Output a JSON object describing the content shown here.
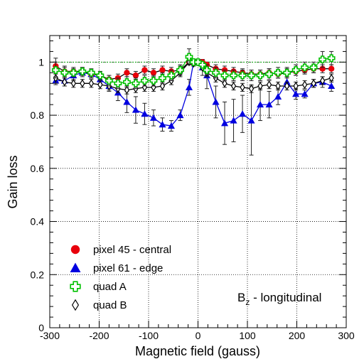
{
  "chart_data": {
    "type": "scatter",
    "title": "",
    "xlabel": "Magnetic field (gauss)",
    "ylabel": "Gain loss",
    "xlim": [
      -300,
      300
    ],
    "ylim": [
      0,
      1.1
    ],
    "grid": true,
    "legend_position": "bottom-left",
    "annotation": {
      "main": "B",
      "sub": "z",
      "rest": " - longitudinal"
    },
    "reference_line": 1.0,
    "x_ticks": [
      -300,
      -200,
      -100,
      0,
      100,
      200,
      300
    ],
    "x_tick_labels": [
      "-300",
      "-200",
      "-100",
      "0",
      "100",
      "200",
      "300"
    ],
    "y_ticks": [
      0,
      0.2,
      0.4,
      0.6,
      0.8,
      1.0
    ],
    "y_tick_labels": [
      "0",
      "0.2",
      "0.4",
      "0.6",
      "0.8",
      "1"
    ],
    "series": [
      {
        "name": "pixel 45 - central",
        "marker": "circle",
        "color": "#e8000b",
        "line_color": "#000000",
        "x": [
          -288,
          -270,
          -252,
          -234,
          -216,
          -198,
          -180,
          -162,
          -144,
          -126,
          -108,
          -90,
          -72,
          -54,
          -36,
          -18,
          -9,
          0,
          9,
          18,
          36,
          54,
          72,
          90,
          108,
          126,
          144,
          162,
          180,
          198,
          216,
          234,
          252,
          270
        ],
        "y": [
          0.985,
          0.965,
          0.965,
          0.965,
          0.955,
          0.95,
          0.935,
          0.94,
          0.96,
          0.95,
          0.97,
          0.96,
          0.97,
          0.965,
          0.97,
          1.0,
          1.0,
          1.0,
          1.0,
          0.99,
          0.975,
          0.97,
          0.965,
          0.96,
          0.955,
          0.955,
          0.96,
          0.955,
          0.96,
          0.965,
          0.97,
          0.975,
          0.975,
          0.975
        ],
        "err": [
          0.03,
          0.02,
          0.015,
          0.015,
          0.015,
          0.015,
          0.015,
          0.015,
          0.015,
          0.015,
          0.015,
          0.015,
          0.015,
          0.015,
          0.015,
          0.01,
          0.01,
          0.01,
          0.01,
          0.01,
          0.015,
          0.015,
          0.015,
          0.015,
          0.015,
          0.015,
          0.015,
          0.015,
          0.015,
          0.015,
          0.015,
          0.015,
          0.015,
          0.015
        ]
      },
      {
        "name": "pixel 61 - edge",
        "marker": "triangle",
        "color": "#0000e0",
        "line_color": "#0000e0",
        "x": [
          -288,
          -270,
          -252,
          -234,
          -216,
          -198,
          -180,
          -162,
          -144,
          -126,
          -108,
          -90,
          -72,
          -54,
          -36,
          -18,
          -9,
          0,
          9,
          18,
          36,
          54,
          72,
          90,
          108,
          126,
          144,
          162,
          180,
          198,
          216,
          234,
          252,
          270
        ],
        "y": [
          0.93,
          0.93,
          0.95,
          0.96,
          0.955,
          0.935,
          0.91,
          0.885,
          0.85,
          0.82,
          0.805,
          0.79,
          0.765,
          0.76,
          0.8,
          0.905,
          1.0,
          1.0,
          0.98,
          0.95,
          0.85,
          0.77,
          0.78,
          0.805,
          0.78,
          0.84,
          0.84,
          0.87,
          0.925,
          0.88,
          0.88,
          0.92,
          0.925,
          0.91
        ],
        "err": [
          0.015,
          0.02,
          0.02,
          0.015,
          0.015,
          0.015,
          0.02,
          0.03,
          0.04,
          0.05,
          0.04,
          0.03,
          0.025,
          0.02,
          0.02,
          0.03,
          0.01,
          0.01,
          0.03,
          0.05,
          0.06,
          0.08,
          0.08,
          0.07,
          0.13,
          0.06,
          0.05,
          0.03,
          0.02,
          0.02,
          0.015,
          0.015,
          0.02,
          0.02
        ]
      },
      {
        "name": "quad A",
        "marker": "cross",
        "color": "#00c000",
        "line_color": "#00c000",
        "x": [
          -288,
          -270,
          -252,
          -234,
          -216,
          -198,
          -180,
          -162,
          -144,
          -126,
          -108,
          -90,
          -72,
          -54,
          -36,
          -18,
          -9,
          0,
          9,
          18,
          36,
          54,
          72,
          90,
          108,
          126,
          144,
          162,
          180,
          198,
          216,
          234,
          252,
          270
        ],
        "y": [
          0.97,
          0.96,
          0.96,
          0.965,
          0.96,
          0.95,
          0.93,
          0.92,
          0.925,
          0.92,
          0.93,
          0.93,
          0.94,
          0.95,
          0.97,
          1.02,
          1.0,
          1.0,
          0.99,
          0.97,
          0.96,
          0.95,
          0.95,
          0.95,
          0.95,
          0.95,
          0.955,
          0.96,
          0.96,
          0.97,
          0.98,
          0.98,
          1.01,
          1.015
        ],
        "err": [
          0.03,
          0.02,
          0.015,
          0.015,
          0.015,
          0.015,
          0.02,
          0.02,
          0.02,
          0.02,
          0.02,
          0.02,
          0.02,
          0.02,
          0.02,
          0.03,
          0.01,
          0.01,
          0.01,
          0.02,
          0.02,
          0.02,
          0.02,
          0.02,
          0.02,
          0.02,
          0.02,
          0.02,
          0.02,
          0.02,
          0.02,
          0.02,
          0.03,
          0.025
        ]
      },
      {
        "name": "quad B",
        "marker": "diamond",
        "color": "#000000",
        "line_color": "#000000",
        "x": [
          -288,
          -270,
          -252,
          -234,
          -216,
          -198,
          -180,
          -162,
          -144,
          -126,
          -108,
          -90,
          -72,
          -54,
          -36,
          -18,
          -9,
          0,
          9,
          18,
          36,
          54,
          72,
          90,
          108,
          126,
          144,
          162,
          180,
          198,
          216,
          234,
          252,
          270
        ],
        "y": [
          0.94,
          0.925,
          0.92,
          0.92,
          0.92,
          0.915,
          0.91,
          0.9,
          0.895,
          0.9,
          0.905,
          0.905,
          0.91,
          0.93,
          0.96,
          1.0,
          0.995,
          1.0,
          0.98,
          0.96,
          0.94,
          0.92,
          0.91,
          0.905,
          0.9,
          0.91,
          0.915,
          0.91,
          0.91,
          0.91,
          0.915,
          0.92,
          0.93,
          0.94
        ],
        "err": [
          0.02,
          0.015,
          0.015,
          0.015,
          0.015,
          0.015,
          0.015,
          0.015,
          0.015,
          0.015,
          0.015,
          0.015,
          0.015,
          0.015,
          0.015,
          0.01,
          0.01,
          0.01,
          0.01,
          0.015,
          0.015,
          0.015,
          0.015,
          0.015,
          0.015,
          0.015,
          0.015,
          0.015,
          0.015,
          0.015,
          0.015,
          0.015,
          0.015,
          0.015
        ]
      }
    ]
  }
}
